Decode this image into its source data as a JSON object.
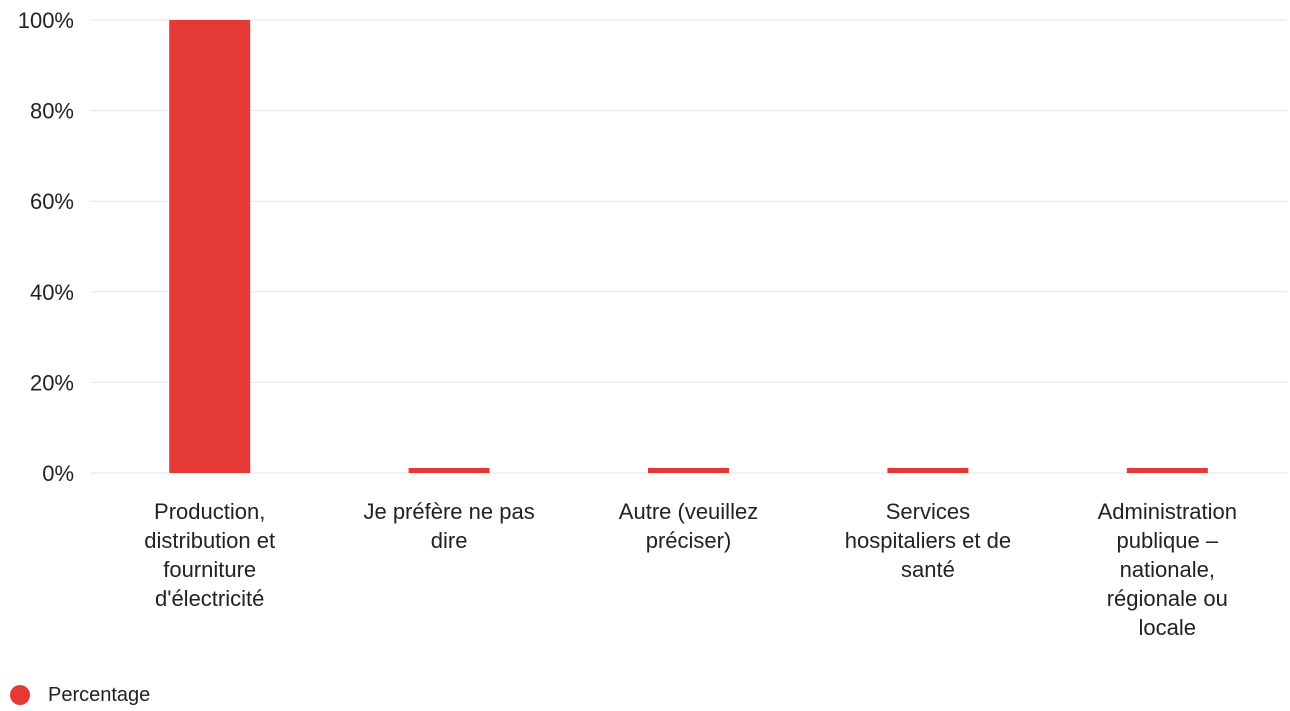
{
  "chart_data": {
    "type": "bar",
    "categories": [
      [
        "Production,",
        "distribution et",
        "fourniture",
        "d'électricité"
      ],
      [
        "Je préfère ne pas",
        "dire"
      ],
      [
        "Autre (veuillez",
        "préciser)"
      ],
      [
        "Services",
        "hospitaliers et de",
        "santé"
      ],
      [
        "Administration",
        "publique –",
        "nationale,",
        "régionale ou",
        "locale"
      ]
    ],
    "series": [
      {
        "name": "Percentage",
        "values": [
          100,
          0,
          0,
          0,
          0
        ],
        "color": "#e53935"
      }
    ],
    "ylim": [
      0,
      100
    ],
    "yticks": [
      0,
      20,
      40,
      60,
      80,
      100
    ],
    "ytick_suffix": "%",
    "grid": true,
    "legend_position": "bottom-left"
  }
}
